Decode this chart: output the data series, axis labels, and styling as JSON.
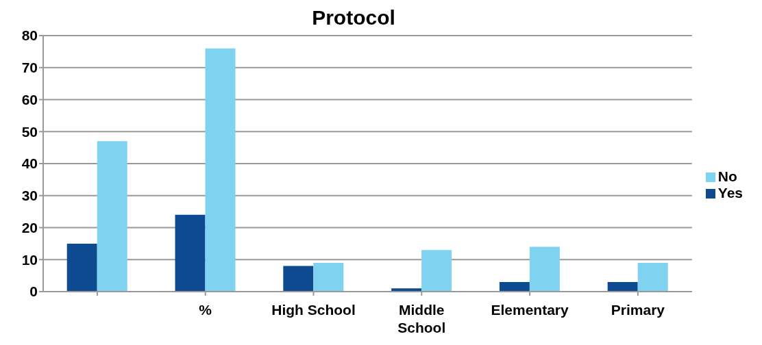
{
  "chart_data": {
    "type": "bar",
    "title": "Protocol",
    "categories": [
      null,
      "%",
      "High School",
      "Middle School",
      "Elementary",
      "Primary"
    ],
    "series": [
      {
        "name": "Yes",
        "color": "#0d4a8f",
        "values": [
          15,
          24,
          8,
          1,
          3,
          3
        ]
      },
      {
        "name": "No",
        "color": "#7fd3f0",
        "values": [
          47,
          76,
          9,
          13,
          14,
          9
        ]
      }
    ],
    "ylim": [
      0,
      80
    ],
    "yticks": [
      0,
      10,
      20,
      30,
      40,
      50,
      60,
      70,
      80
    ],
    "grid": "y",
    "legend": "right"
  }
}
